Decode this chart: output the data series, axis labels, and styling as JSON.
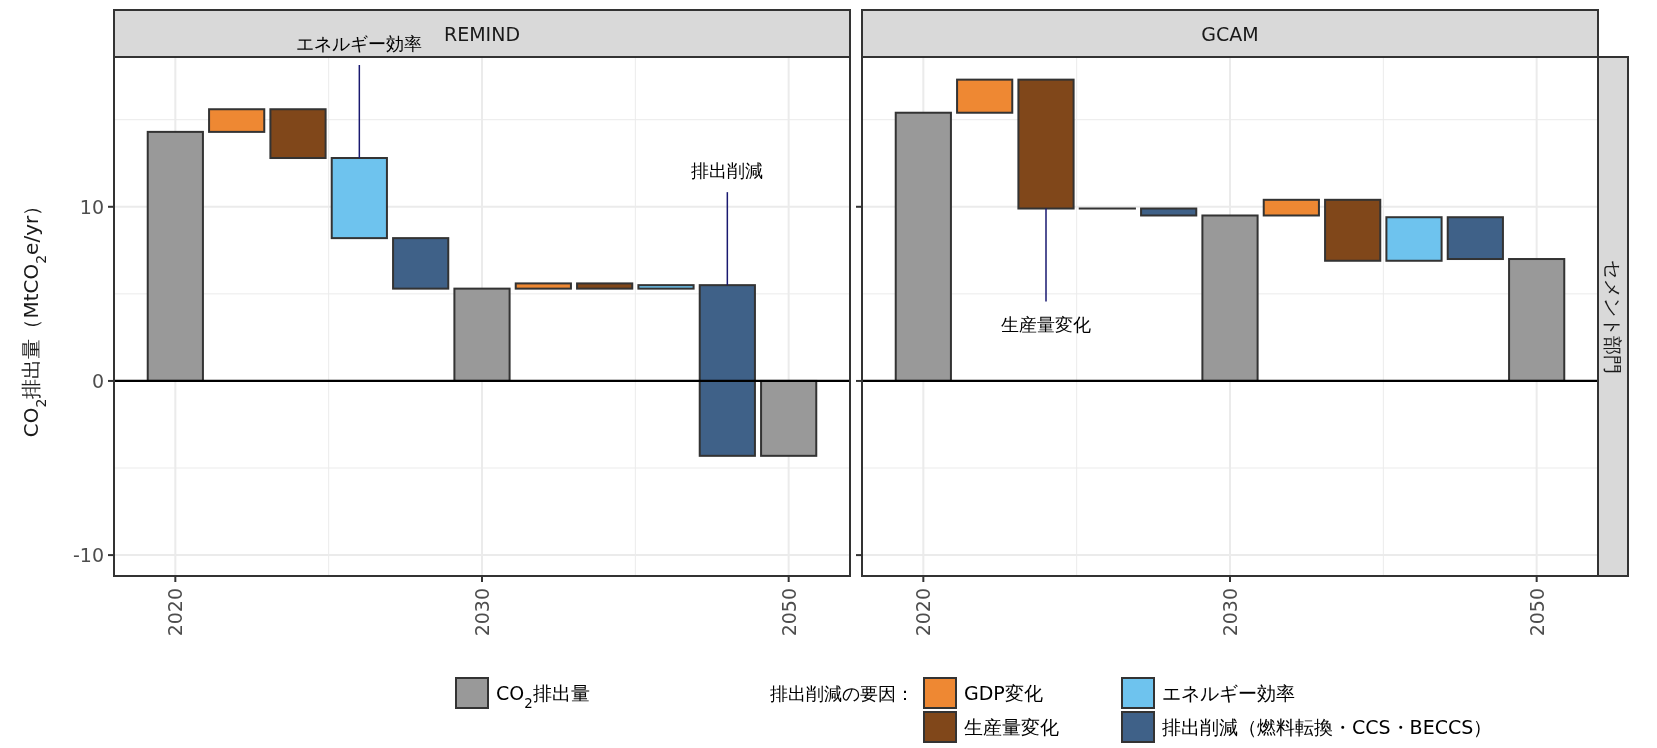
{
  "chart_data": [
    {
      "type": "bar",
      "title": "REMIND",
      "ylabel": "CO$_{2}$排出量（MtCO$_{2}$e/yr）",
      "legend": "bottom",
      "legend_title": "排出削減の要因：",
      "categories": [
        "2020",
        null,
        null,
        null,
        null,
        "2030",
        null,
        null,
        null,
        null,
        "2050"
      ],
      "ylim": [
        -11.2,
        18.6
      ],
      "yticks": [
        -10,
        0,
        10
      ],
      "grid": true,
      "ref_lines": [
        {
          "axis": "y",
          "value": 0,
          "color": "#000000"
        }
      ],
      "series": [
        {
          "name": "CO$_{2}$排出量",
          "color": "#999999",
          "values": [
            14.3,
            null,
            null,
            null,
            null,
            5.3,
            null,
            null,
            null,
            null,
            -4.3
          ],
          "base": [
            0,
            null,
            null,
            null,
            null,
            0,
            null,
            null,
            null,
            null,
            0
          ]
        },
        {
          "name": "GDP変化",
          "color": "#ee8833",
          "values": [
            null,
            1.3,
            null,
            null,
            null,
            null,
            0.3,
            null,
            null,
            null,
            null
          ],
          "base": [
            null,
            14.3,
            null,
            null,
            null,
            null,
            5.3,
            null,
            null,
            null,
            null
          ]
        },
        {
          "name": "生産量変化",
          "color": "#80471a",
          "values": [
            null,
            null,
            -2.8,
            null,
            null,
            null,
            null,
            -0.3,
            null,
            null,
            null
          ],
          "base": [
            null,
            null,
            15.6,
            null,
            null,
            null,
            null,
            5.6,
            null,
            null,
            null
          ]
        },
        {
          "name": "エネルギー効率",
          "color": "#6ec3ee",
          "values": [
            null,
            null,
            null,
            -4.6,
            null,
            null,
            null,
            null,
            0.2,
            null,
            null
          ],
          "base": [
            null,
            null,
            null,
            12.8,
            null,
            null,
            null,
            null,
            5.3,
            null,
            null
          ]
        },
        {
          "name": "排出削減（燃料転換・CCS・BECCS）",
          "color": "#3f6188",
          "values": [
            null,
            null,
            null,
            null,
            -2.9,
            null,
            null,
            null,
            null,
            -9.8,
            null
          ],
          "base": [
            null,
            null,
            null,
            null,
            8.2,
            null,
            null,
            null,
            null,
            5.5,
            null
          ]
        }
      ],
      "annotations": [
        {
          "text": "エネルギー効率",
          "y": 12.8
        },
        {
          "text": "排出削減",
          "y": 5.5
        }
      ]
    },
    {
      "type": "bar",
      "title": "GCAM",
      "tick_labels": "x",
      "categories": [
        "2020",
        null,
        null,
        null,
        null,
        "2030",
        null,
        null,
        null,
        null,
        "2050"
      ],
      "ylim": [
        -11.2,
        18.6
      ],
      "yticks": [
        -10,
        0,
        10
      ],
      "grid": true,
      "ref_lines": [
        {
          "axis": "y",
          "value": 0,
          "color": "#000000"
        }
      ],
      "series": [
        {
          "color": "#999999",
          "values": [
            15.4,
            null,
            null,
            null,
            null,
            9.5,
            null,
            null,
            null,
            null,
            7.0
          ],
          "base": [
            0,
            null,
            null,
            null,
            null,
            0,
            null,
            null,
            null,
            null,
            0
          ]
        },
        {
          "color": "#ee8833",
          "values": [
            null,
            1.9,
            null,
            null,
            null,
            null,
            0.9,
            null,
            null,
            null,
            null
          ],
          "base": [
            null,
            15.4,
            null,
            null,
            null,
            null,
            9.5,
            null,
            null,
            null,
            null
          ]
        },
        {
          "color": "#80471a",
          "values": [
            null,
            null,
            -7.4,
            null,
            null,
            null,
            null,
            -3.5,
            null,
            null,
            null
          ],
          "base": [
            null,
            null,
            17.3,
            null,
            null,
            null,
            null,
            10.4,
            null,
            null,
            null
          ]
        },
        {
          "color": "#6ec3ee",
          "values": [
            null,
            null,
            null,
            0,
            null,
            null,
            null,
            null,
            2.5,
            null,
            null
          ],
          "base": [
            null,
            null,
            null,
            9.9,
            null,
            null,
            null,
            null,
            6.9,
            null,
            null
          ]
        },
        {
          "color": "#3f6188",
          "values": [
            null,
            null,
            null,
            null,
            -0.4,
            null,
            null,
            null,
            null,
            -2.4,
            null
          ],
          "base": [
            null,
            null,
            null,
            null,
            9.9,
            null,
            null,
            null,
            null,
            9.4,
            null
          ]
        }
      ],
      "annotations": [
        {
          "text": "生産量変化",
          "y": 9.9
        },
        "セメント部門"
      ]
    }
  ]
}
